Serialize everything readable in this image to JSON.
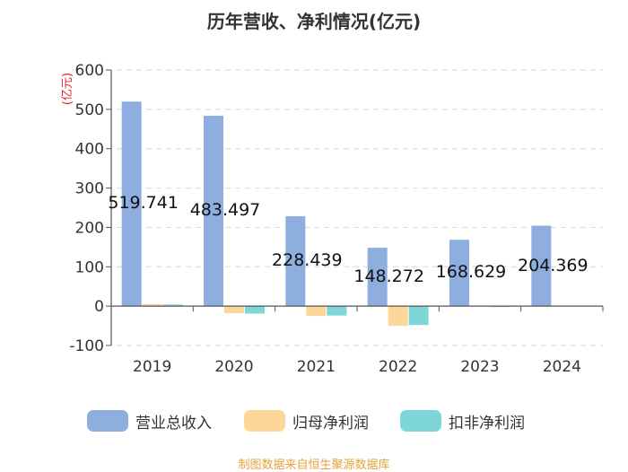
{
  "chart_data": {
    "type": "bar",
    "title": "历年营收、净利情况(亿元)",
    "ylabel": "(亿元)",
    "ylim": [
      -100,
      600
    ],
    "yticks": [
      -100,
      0,
      100,
      200,
      300,
      400,
      500,
      600
    ],
    "categories": [
      "2019",
      "2020",
      "2021",
      "2022",
      "2023",
      "2024"
    ],
    "series": [
      {
        "name": "营业总收入",
        "color": "#8eaee0",
        "values": [
          519.741,
          483.497,
          228.439,
          148.272,
          168.629,
          204.369
        ]
      },
      {
        "name": "归母净利润",
        "color": "#fdd79a",
        "values": [
          5,
          -18,
          -25,
          -50,
          null,
          null
        ]
      },
      {
        "name": "扣非净利润",
        "color": "#7fd6d8",
        "values": [
          4,
          -19,
          -24,
          -48,
          -2,
          null
        ]
      }
    ],
    "data_labels": [
      "519.741",
      "483.497",
      "228.439",
      "148.272",
      "168.629",
      "204.369"
    ],
    "grid": true,
    "legend_position": "bottom"
  },
  "source": "制图数据来自恒生聚源数据库"
}
